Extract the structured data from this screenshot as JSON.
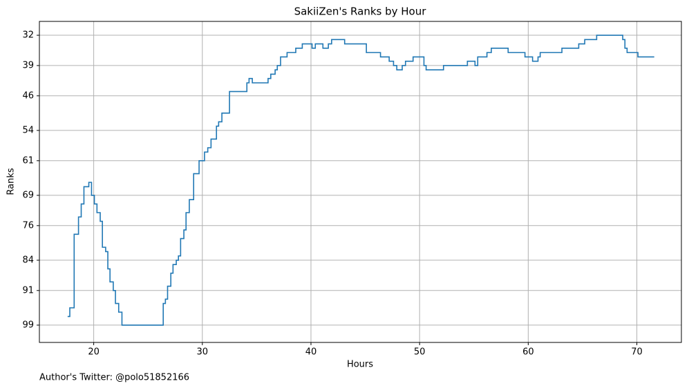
{
  "chart_data": {
    "type": "step",
    "title": "SakiiZen's Ranks by Hour",
    "xlabel": "Hours",
    "ylabel": "Ranks",
    "annotation": "Author's Twitter: @polo51852166",
    "color": "#1f77b4",
    "grid": true,
    "y_inverted": true,
    "xlim": [
      15.0,
      74.1
    ],
    "xticks": [
      20,
      30,
      40,
      50,
      60,
      70
    ],
    "ylim": [
      103,
      28.8
    ],
    "yticks": [
      32,
      39,
      46,
      54,
      61,
      69,
      76,
      84,
      91,
      99
    ],
    "x": [
      17.6,
      17.8,
      18.2,
      18.6,
      18.85,
      19.1,
      19.55,
      19.8,
      20.06,
      20.3,
      20.6,
      20.8,
      21.1,
      21.3,
      21.5,
      21.8,
      22.0,
      22.3,
      22.6,
      26.4,
      26.6,
      26.8,
      27.1,
      27.3,
      27.6,
      27.8,
      28.0,
      28.3,
      28.5,
      28.8,
      29.2,
      29.7,
      30.2,
      30.5,
      30.8,
      31.3,
      31.5,
      31.8,
      32.5,
      34.1,
      34.3,
      34.6,
      36.05,
      36.3,
      36.7,
      36.9,
      37.2,
      37.8,
      38.6,
      39.2,
      40.1,
      40.4,
      41.1,
      41.6,
      41.9,
      43.1,
      45.1,
      46.4,
      47.2,
      47.6,
      47.9,
      48.4,
      48.7,
      49.4,
      50.4,
      50.6,
      52.2,
      54.4,
      55.1,
      55.35,
      56.2,
      56.6,
      58.15,
      59.7,
      60.4,
      60.9,
      61.1,
      63.1,
      64.65,
      65.2,
      66.3,
      68.7,
      68.9,
      69.1,
      70.1,
      71.6
    ],
    "values": [
      97,
      95,
      78,
      74,
      71,
      67,
      66,
      69,
      71,
      73,
      75,
      81,
      82,
      86,
      89,
      91,
      94,
      96,
      99,
      94,
      93,
      90,
      87,
      85,
      84,
      83,
      79,
      77,
      73,
      70,
      64,
      61,
      59,
      58,
      56,
      53,
      52,
      50,
      45,
      43,
      42,
      43,
      42,
      41,
      40,
      39,
      37,
      36,
      35,
      34,
      35,
      34,
      35,
      34,
      33,
      34,
      36,
      37,
      38,
      39,
      40,
      39,
      38,
      37,
      39,
      40,
      39,
      38,
      39,
      37,
      36,
      35,
      36,
      37,
      38,
      37,
      36,
      35,
      34,
      33,
      32,
      33,
      35,
      36,
      37,
      37
    ]
  }
}
